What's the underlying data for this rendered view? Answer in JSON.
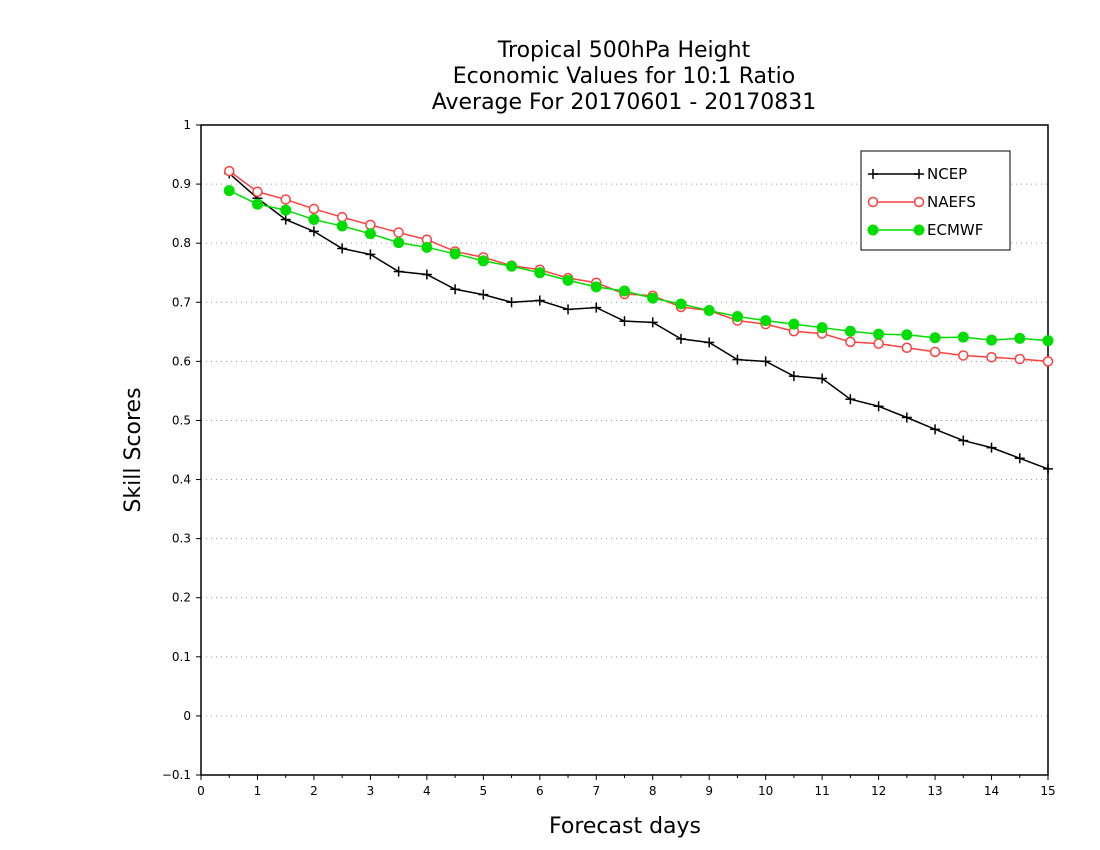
{
  "chart_data": {
    "type": "line",
    "title_lines": [
      "Tropical 500hPa Height",
      "Economic Values for 10:1 Ratio",
      "Average For 20170601 - 20170831"
    ],
    "xlabel": "Forecast days",
    "ylabel": "Skill Scores",
    "xlim": [
      0,
      15
    ],
    "ylim": [
      -0.1,
      1
    ],
    "xticks": [
      0,
      1,
      2,
      3,
      4,
      5,
      6,
      7,
      8,
      9,
      10,
      11,
      12,
      13,
      14,
      15
    ],
    "yticks": [
      -0.1,
      0,
      0.1,
      0.2,
      0.3,
      0.4,
      0.5,
      0.6,
      0.7,
      0.8,
      0.9,
      1
    ],
    "ytick_labels": [
      "−0.1",
      "0",
      "0.1",
      "0.2",
      "0.3",
      "0.4",
      "0.5",
      "0.6",
      "0.7",
      "0.8",
      "0.9",
      "1"
    ],
    "grid": "horizontal dotted",
    "legend_position": "top-right",
    "x": [
      0.5,
      1,
      1.5,
      2,
      2.5,
      3,
      3.5,
      4,
      4.5,
      5,
      5.5,
      6,
      6.5,
      7,
      7.5,
      8,
      8.5,
      9,
      9.5,
      10,
      10.5,
      11,
      11.5,
      12,
      12.5,
      13,
      13.5,
      14,
      14.5,
      15
    ],
    "series": [
      {
        "name": "NCEP",
        "color": "#000000",
        "marker": "plus",
        "values": [
          0.918,
          0.876,
          0.84,
          0.82,
          0.791,
          0.781,
          0.752,
          0.747,
          0.722,
          0.713,
          0.7,
          0.703,
          0.688,
          0.691,
          0.668,
          0.666,
          0.638,
          0.632,
          0.603,
          0.6,
          0.575,
          0.571,
          0.536,
          0.524,
          0.505,
          0.485,
          0.466,
          0.454,
          0.436,
          0.418
        ]
      },
      {
        "name": "NAEFS",
        "color": "#ff4040",
        "marker": "open-circle",
        "values": [
          0.922,
          0.887,
          0.874,
          0.858,
          0.844,
          0.831,
          0.818,
          0.806,
          0.786,
          0.776,
          0.762,
          0.755,
          0.741,
          0.733,
          0.714,
          0.711,
          0.692,
          0.686,
          0.669,
          0.663,
          0.651,
          0.647,
          0.633,
          0.63,
          0.623,
          0.616,
          0.61,
          0.607,
          0.604,
          0.6
        ]
      },
      {
        "name": "ECMWF",
        "color": "#00dd00",
        "marker": "filled-circle",
        "values": [
          0.889,
          0.866,
          0.856,
          0.84,
          0.829,
          0.816,
          0.801,
          0.793,
          0.782,
          0.77,
          0.761,
          0.75,
          0.737,
          0.726,
          0.719,
          0.707,
          0.697,
          0.686,
          0.676,
          0.669,
          0.663,
          0.657,
          0.651,
          0.646,
          0.645,
          0.64,
          0.641,
          0.636,
          0.639,
          0.635
        ]
      }
    ]
  }
}
